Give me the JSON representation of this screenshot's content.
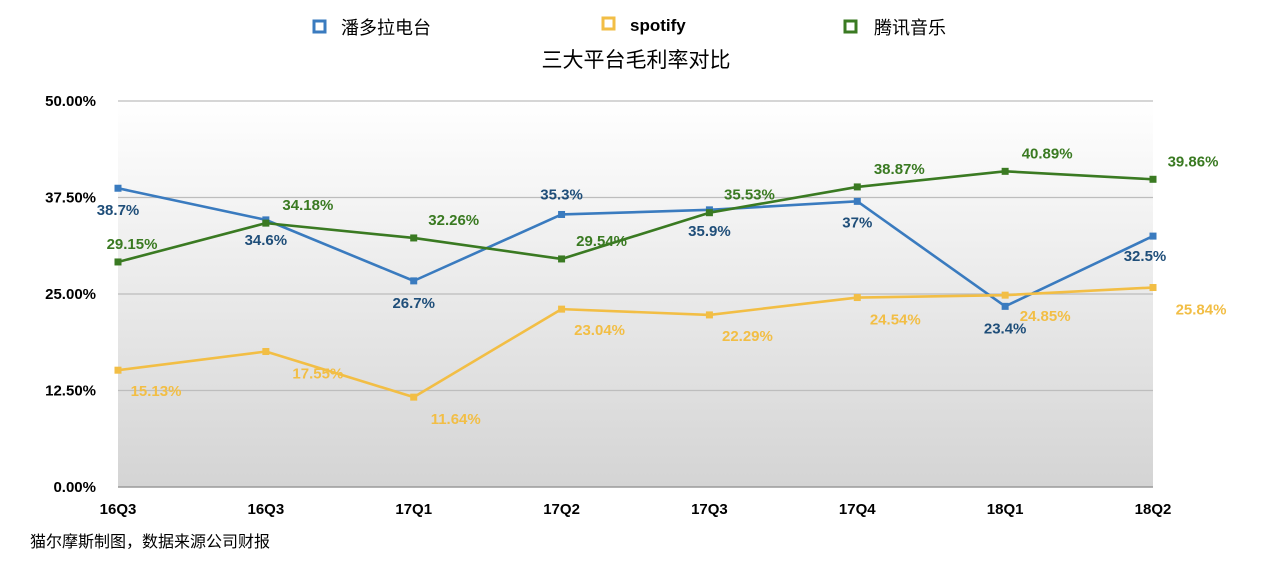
{
  "chart_data": {
    "type": "line",
    "title": "三大平台毛利率对比",
    "categories": [
      "16Q3",
      "16Q3",
      "17Q1",
      "17Q2",
      "17Q3",
      "17Q4",
      "18Q1",
      "18Q2"
    ],
    "y_ticks": [
      "0.00%",
      "12.50%",
      "25.00%",
      "37.50%",
      "50.00%"
    ],
    "ylim": [
      0,
      50
    ],
    "grid": true,
    "legend_position": "top",
    "series": [
      {
        "name": "潘多拉电台",
        "color": "#3A7BBF",
        "label_color": "#1F4E79",
        "values": [
          38.7,
          34.6,
          26.7,
          35.3,
          35.9,
          37,
          23.4,
          32.5
        ],
        "labels": [
          "38.7%",
          "34.6%",
          "26.7%",
          "35.3%",
          "35.9%",
          "37%",
          "23.4%",
          "32.5%"
        ]
      },
      {
        "name": "spotify",
        "color": "#F2BE45",
        "label_color": "#F2BE45",
        "values": [
          15.13,
          17.55,
          11.64,
          23.04,
          22.29,
          24.54,
          24.85,
          25.84
        ],
        "labels": [
          "15.13%",
          "17.55%",
          "11.64%",
          "23.04%",
          "22.29%",
          "24.54%",
          "24.85%",
          "25.84%"
        ]
      },
      {
        "name": "腾讯音乐",
        "color": "#3A7A22",
        "label_color": "#3A7A22",
        "values": [
          29.15,
          34.18,
          32.26,
          29.54,
          35.53,
          38.87,
          40.89,
          39.86
        ],
        "labels": [
          "29.15%",
          "34.18%",
          "32.26%",
          "29.54%",
          "35.53%",
          "38.87%",
          "40.89%",
          "39.86%"
        ]
      }
    ]
  },
  "footer": {
    "source": "猫尔摩斯制图，数据来源公司财报"
  }
}
